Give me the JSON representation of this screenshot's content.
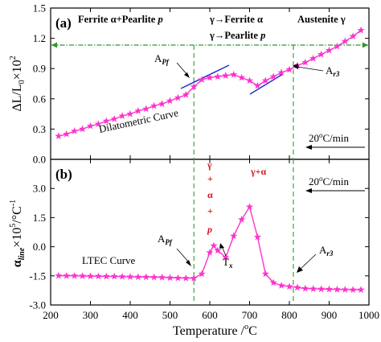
{
  "chart_data": [
    {
      "panel": "(a)",
      "type": "line",
      "xlim": [
        200,
        1000
      ],
      "ylim": [
        0.0,
        1.5
      ],
      "x_ticks": [
        200,
        300,
        400,
        500,
        600,
        700,
        800,
        900,
        1000
      ],
      "y_ticks": [
        "0.0",
        "0.3",
        "0.6",
        "0.9",
        "1.2",
        "1.5"
      ],
      "ylabel": "ΔL/L₀×10²",
      "series": [
        {
          "name": "Dilatometric Curve",
          "color": "#ff33cc",
          "marker": "star",
          "x": [
            220,
            240,
            260,
            280,
            300,
            320,
            340,
            360,
            380,
            400,
            420,
            440,
            460,
            480,
            500,
            520,
            540,
            560,
            580,
            600,
            620,
            640,
            660,
            680,
            700,
            720,
            740,
            760,
            780,
            800,
            820,
            840,
            860,
            880,
            900,
            920,
            940,
            960,
            980
          ],
          "y": [
            0.23,
            0.25,
            0.28,
            0.3,
            0.33,
            0.35,
            0.38,
            0.4,
            0.43,
            0.45,
            0.48,
            0.5,
            0.53,
            0.55,
            0.58,
            0.61,
            0.64,
            0.72,
            0.79,
            0.81,
            0.82,
            0.83,
            0.84,
            0.81,
            0.78,
            0.73,
            0.78,
            0.82,
            0.86,
            0.89,
            0.93,
            0.96,
            1.0,
            1.04,
            1.08,
            1.12,
            1.17,
            1.22,
            1.28
          ]
        }
      ],
      "phase_labels": [
        "Ferrite α+Pearlite p",
        "γ→Ferrite α",
        "γ→Pearlite p",
        "Austenite γ"
      ],
      "annotations": {
        "a_pf": "A",
        "a_pf_sub": "Pf",
        "a_r3": "A",
        "a_r3_sub": "r3",
        "rate": "20°C/min",
        "curve_label": "Dilatometric Curve"
      }
    },
    {
      "panel": "(b)",
      "type": "line",
      "xlim": [
        200,
        1000
      ],
      "ylim": [
        -3.0,
        4.5
      ],
      "x_ticks": [
        200,
        300,
        400,
        500,
        600,
        700,
        800,
        900,
        1000
      ],
      "y_ticks": [
        "-3.0",
        "-1.5",
        "0.0",
        "1.5",
        "3.0"
      ],
      "xlabel": "Temperature /°C",
      "ylabel": "α_line×10⁵/°C⁻¹",
      "series": [
        {
          "name": "LTEC Curve",
          "color": "#ff33cc",
          "marker": "star",
          "x": [
            220,
            240,
            260,
            280,
            300,
            320,
            340,
            360,
            380,
            400,
            420,
            440,
            460,
            480,
            500,
            520,
            540,
            560,
            580,
            600,
            610,
            620,
            640,
            660,
            680,
            700,
            720,
            740,
            760,
            780,
            800,
            820,
            840,
            860,
            880,
            900,
            920,
            940,
            960,
            980
          ],
          "y": [
            -1.49,
            -1.5,
            -1.5,
            -1.51,
            -1.52,
            -1.52,
            -1.53,
            -1.53,
            -1.54,
            -1.55,
            -1.56,
            -1.56,
            -1.57,
            -1.58,
            -1.6,
            -1.61,
            -1.62,
            -1.62,
            -1.4,
            -0.3,
            0.05,
            -0.2,
            -0.55,
            0.55,
            1.4,
            2.05,
            0.5,
            -1.4,
            -1.85,
            -2.0,
            -2.05,
            -2.1,
            -2.15,
            -2.17,
            -2.18,
            -2.19,
            -2.2,
            -2.21,
            -2.22,
            -2.22
          ]
        }
      ],
      "phase_labels": [
        "γ",
        "+",
        "α",
        "+",
        "p",
        "γ+α"
      ],
      "annotations": {
        "a_pf": "A",
        "a_pf_sub": "Pf",
        "tx": "T",
        "tx_sub": "x",
        "a_r3": "A",
        "a_r3_sub": "r3",
        "rate": "20°C/min",
        "curve_label": "LTEC Curve"
      }
    }
  ],
  "colors": {
    "curve": "#ff33cc",
    "line": "#1e2fd0",
    "guide": "#2a9a2a",
    "phase_text": "#d4141d"
  },
  "markers": {
    "vertical_lines_x": [
      560,
      810
    ]
  },
  "axis_labels": {
    "y_top": "ΔL/L",
    "y_top_sub": "0",
    "y_top_tail": "×10",
    "y_top_sup": "2",
    "y_bottom_alpha": "α",
    "y_bottom_sub": "line",
    "y_bottom_tail": "×10",
    "y_bottom_sup": "5",
    "y_bottom_unit": "/°C",
    "y_bottom_unit_sup": "-1",
    "x_label": "Temperature /",
    "x_unit_o": "o",
    "x_unit_c": "C"
  },
  "panel_labels": {
    "a": "(a)",
    "b": "(b)"
  },
  "rate_text": {
    "a": "20",
    "a_o": "o",
    "a_tail": "C/min",
    "b": "20",
    "b_o": "o",
    "b_tail": "C/min"
  },
  "phase_text": {
    "ferrite_pearlite_pre": "Ferrite ",
    "ferrite_pearlite_alpha": "α",
    "ferrite_pearlite_mid": "+Pearlite ",
    "ferrite_pearlite_p": "p",
    "trans1_pre": "γ→Ferrite ",
    "trans1_alpha": "α",
    "trans2_pre": "γ→Pearlite ",
    "trans2_p": "p",
    "austenite": "Austenite γ",
    "red_g": "γ",
    "red_plus1": "+",
    "red_a": "α",
    "red_plus2": "+",
    "red_p": "p",
    "red_ga": "γ+α"
  }
}
